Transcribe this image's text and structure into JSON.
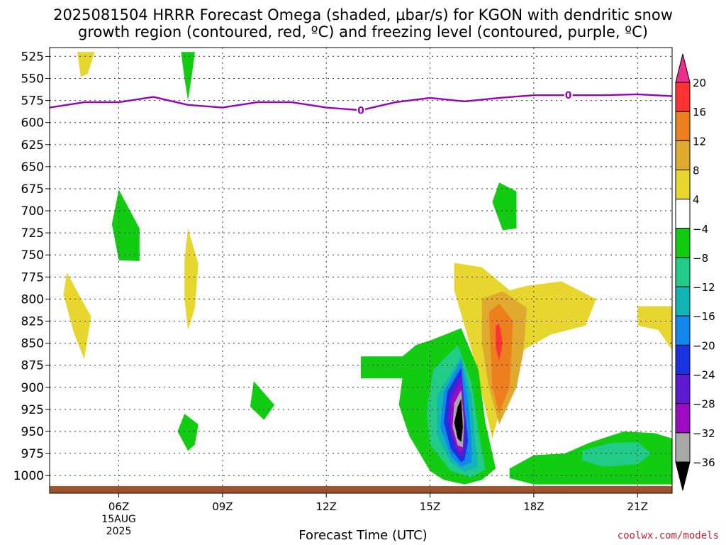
{
  "title_line1": "2025081504 HRRR Forecast Omega (shaded, μbar/s) for KGON with dendritic snow",
  "title_line2": "growth region (contoured, red, ºC) and freezing level (contoured, purple, ºC)",
  "credit": "coolwx.com/models",
  "chart_data": {
    "type": "heatmap",
    "xlabel": "Forecast Time (UTC)",
    "x_ticks": [
      {
        "hour": 6,
        "label": "06Z",
        "sub": [
          "15AUG",
          "2025"
        ]
      },
      {
        "hour": 9,
        "label": "09Z"
      },
      {
        "hour": 12,
        "label": "12Z"
      },
      {
        "hour": 15,
        "label": "15Z"
      },
      {
        "hour": 18,
        "label": "18Z"
      },
      {
        "hour": 21,
        "label": "21Z"
      }
    ],
    "xlim": [
      4,
      22
    ],
    "y_ticks": [
      525,
      550,
      575,
      600,
      625,
      650,
      675,
      700,
      725,
      750,
      775,
      800,
      825,
      850,
      875,
      900,
      925,
      950,
      975,
      1000
    ],
    "ylim": [
      1020,
      515
    ],
    "grid": true,
    "colorbar": {
      "labels": [
        "20",
        "16",
        "12",
        "8",
        "4",
        "−4",
        "−8",
        "−12",
        "−16",
        "−20",
        "−24",
        "−28",
        "−32",
        "−36"
      ],
      "colors": [
        "#ee2d8c",
        "#ff3333",
        "#ee7f1e",
        "#e0aa2e",
        "#e6d62e",
        "#ffffff",
        "#11cc11",
        "#22cc88",
        "#11b5b5",
        "#1188ee",
        "#1a33e0",
        "#5e1ad0",
        "#9d0cc2",
        "#a8a8a8",
        "#000000"
      ]
    },
    "freezing_level": {
      "label": "0",
      "color": "#9900bb",
      "points": [
        [
          4.0,
          583
        ],
        [
          5.0,
          577
        ],
        [
          6.0,
          577
        ],
        [
          7.0,
          571
        ],
        [
          8.0,
          580
        ],
        [
          9.0,
          583
        ],
        [
          10.0,
          577
        ],
        [
          11.0,
          577
        ],
        [
          12.0,
          583
        ],
        [
          13.0,
          586
        ],
        [
          14.0,
          577
        ],
        [
          15.0,
          572
        ],
        [
          16.0,
          576
        ],
        [
          17.0,
          572
        ],
        [
          18.0,
          569
        ],
        [
          19.0,
          569
        ],
        [
          20.0,
          569
        ],
        [
          21.0,
          568
        ],
        [
          22.0,
          570
        ]
      ]
    },
    "ground": {
      "color": "#a0522d",
      "pressure": 1012
    },
    "omega_regions": [
      {
        "level": "8",
        "color": "#e6d62e",
        "points": [
          [
            4.8,
            520
          ],
          [
            5.3,
            520
          ],
          [
            5.1,
            545
          ],
          [
            4.9,
            548
          ]
        ]
      },
      {
        "level": "-8",
        "color": "#11cc11",
        "points": [
          [
            7.8,
            520
          ],
          [
            8.2,
            520
          ],
          [
            8.1,
            550
          ],
          [
            8.0,
            575
          ],
          [
            7.9,
            550
          ]
        ]
      },
      {
        "level": "-8",
        "color": "#11cc11",
        "points": [
          [
            6.0,
            676
          ],
          [
            6.6,
            720
          ],
          [
            6.6,
            757
          ],
          [
            6.0,
            756
          ],
          [
            5.8,
            715
          ]
        ]
      },
      {
        "level": "8",
        "color": "#e6d62e",
        "points": [
          [
            4.5,
            770
          ],
          [
            5.2,
            820
          ],
          [
            5.0,
            868
          ],
          [
            4.7,
            838
          ],
          [
            4.4,
            795
          ]
        ]
      },
      {
        "level": "8",
        "color": "#e6d62e",
        "points": [
          [
            8.0,
            720
          ],
          [
            8.3,
            760
          ],
          [
            8.2,
            810
          ],
          [
            8.0,
            835
          ],
          [
            7.9,
            800
          ],
          [
            7.9,
            755
          ]
        ]
      },
      {
        "level": "-8",
        "color": "#11cc11",
        "points": [
          [
            7.9,
            930
          ],
          [
            8.3,
            942
          ],
          [
            8.2,
            965
          ],
          [
            8.0,
            972
          ],
          [
            7.7,
            950
          ]
        ]
      },
      {
        "level": "-8",
        "color": "#11cc11",
        "points": [
          [
            9.9,
            893
          ],
          [
            10.5,
            920
          ],
          [
            10.2,
            937
          ],
          [
            9.8,
            922
          ]
        ]
      },
      {
        "level": "-8",
        "color": "#11cc11",
        "points": [
          [
            17.0,
            668
          ],
          [
            17.5,
            678
          ],
          [
            17.5,
            720
          ],
          [
            17.1,
            722
          ],
          [
            16.8,
            690
          ]
        ]
      },
      {
        "level": "8",
        "color": "#e6d62e",
        "points": [
          [
            21.0,
            808
          ],
          [
            22.0,
            808
          ],
          [
            22.0,
            858
          ],
          [
            21.6,
            835
          ],
          [
            21.0,
            830
          ]
        ]
      },
      {
        "level": "8",
        "color": "#e6d62e",
        "points": [
          [
            15.7,
            759
          ],
          [
            16.5,
            764
          ],
          [
            17.3,
            790
          ],
          [
            17.8,
            785
          ],
          [
            18.8,
            780
          ],
          [
            19.8,
            800
          ],
          [
            19.5,
            830
          ],
          [
            18.5,
            840
          ],
          [
            17.6,
            860
          ],
          [
            17.2,
            900
          ],
          [
            16.8,
            958
          ],
          [
            16.2,
            858
          ],
          [
            15.7,
            790
          ]
        ]
      },
      {
        "level": "12",
        "color": "#e0aa2e",
        "points": [
          [
            16.5,
            800
          ],
          [
            17.1,
            791
          ],
          [
            17.8,
            810
          ],
          [
            17.7,
            860
          ],
          [
            17.5,
            900
          ],
          [
            17.0,
            942
          ],
          [
            16.7,
            900
          ],
          [
            16.5,
            850
          ]
        ]
      },
      {
        "level": "16",
        "color": "#ee7f1e",
        "points": [
          [
            16.7,
            815
          ],
          [
            17.0,
            805
          ],
          [
            17.4,
            825
          ],
          [
            17.3,
            900
          ],
          [
            17.0,
            930
          ],
          [
            16.8,
            900
          ]
        ]
      },
      {
        "level": "20",
        "color": "#ff3333",
        "points": [
          [
            16.9,
            830
          ],
          [
            17.0,
            828
          ],
          [
            17.1,
            850
          ],
          [
            17.0,
            870
          ],
          [
            16.9,
            855
          ]
        ]
      },
      {
        "level": "-8",
        "color": "#11cc11",
        "points": [
          [
            15.0,
            847
          ],
          [
            15.9,
            833
          ],
          [
            16.4,
            880
          ],
          [
            16.6,
            940
          ],
          [
            16.9,
            992
          ],
          [
            16.5,
            1005
          ],
          [
            16.0,
            1010
          ],
          [
            15.4,
            1005
          ],
          [
            15.0,
            995
          ],
          [
            14.4,
            955
          ],
          [
            14.1,
            920
          ],
          [
            14.2,
            890
          ],
          [
            13.0,
            890
          ],
          [
            13.0,
            865
          ],
          [
            14.2,
            865
          ],
          [
            14.6,
            852
          ]
        ]
      },
      {
        "level": "-12",
        "color": "#22cc88",
        "points": [
          [
            15.8,
            852
          ],
          [
            16.2,
            895
          ],
          [
            16.4,
            950
          ],
          [
            16.6,
            993
          ],
          [
            16.2,
            1002
          ],
          [
            15.6,
            995
          ],
          [
            15.0,
            965
          ],
          [
            14.9,
            925
          ],
          [
            15.1,
            880
          ]
        ]
      },
      {
        "level": "-16",
        "color": "#11b5b5",
        "points": [
          [
            15.9,
            865
          ],
          [
            16.2,
            910
          ],
          [
            16.3,
            960
          ],
          [
            16.4,
            990
          ],
          [
            16.0,
            996
          ],
          [
            15.6,
            985
          ],
          [
            15.2,
            955
          ],
          [
            15.2,
            910
          ]
        ]
      },
      {
        "level": "-20",
        "color": "#1188ee",
        "points": [
          [
            15.9,
            870
          ],
          [
            16.1,
            915
          ],
          [
            16.2,
            960
          ],
          [
            16.2,
            985
          ],
          [
            15.9,
            990
          ],
          [
            15.6,
            978
          ],
          [
            15.3,
            945
          ],
          [
            15.4,
            905
          ]
        ]
      },
      {
        "level": "-24",
        "color": "#1a33e0",
        "points": [
          [
            15.9,
            878
          ],
          [
            16.0,
            925
          ],
          [
            16.1,
            960
          ],
          [
            16.0,
            982
          ],
          [
            15.9,
            985
          ],
          [
            15.6,
            970
          ],
          [
            15.4,
            940
          ],
          [
            15.5,
            905
          ]
        ]
      },
      {
        "level": "-28",
        "color": "#5e1ad0",
        "points": [
          [
            15.9,
            885
          ],
          [
            16.0,
            930
          ],
          [
            16.0,
            975
          ],
          [
            15.9,
            980
          ],
          [
            15.7,
            965
          ],
          [
            15.5,
            935
          ],
          [
            15.6,
            905
          ]
        ]
      },
      {
        "level": "-32",
        "color": "#9d0cc2",
        "points": [
          [
            15.9,
            893
          ],
          [
            16.0,
            935
          ],
          [
            15.95,
            972
          ],
          [
            15.8,
            972
          ],
          [
            15.6,
            950
          ],
          [
            15.6,
            915
          ]
        ]
      },
      {
        "level": "-36",
        "color": "#a8a8a8",
        "points": [
          [
            15.9,
            903
          ],
          [
            15.98,
            940
          ],
          [
            15.95,
            968
          ],
          [
            15.8,
            966
          ],
          [
            15.65,
            945
          ],
          [
            15.7,
            918
          ]
        ]
      },
      {
        "level": "<-36",
        "color": "#000000",
        "points": [
          [
            15.9,
            913
          ],
          [
            15.95,
            945
          ],
          [
            15.9,
            962
          ],
          [
            15.8,
            958
          ],
          [
            15.7,
            940
          ],
          [
            15.8,
            922
          ]
        ]
      },
      {
        "level": "-8",
        "color": "#11cc11",
        "points": [
          [
            17.3,
            992
          ],
          [
            18.0,
            977
          ],
          [
            18.9,
            975
          ],
          [
            19.6,
            963
          ],
          [
            20.6,
            950
          ],
          [
            21.5,
            952
          ],
          [
            22.0,
            958
          ],
          [
            22.0,
            1010
          ],
          [
            18.0,
            1010
          ],
          [
            17.3,
            1003
          ]
        ]
      },
      {
        "level": "-12",
        "color": "#22cc88",
        "points": [
          [
            19.4,
            972
          ],
          [
            20.2,
            963
          ],
          [
            21.0,
            962
          ],
          [
            21.4,
            975
          ],
          [
            21.0,
            987
          ],
          [
            20.0,
            990
          ],
          [
            19.4,
            983
          ]
        ]
      }
    ]
  }
}
